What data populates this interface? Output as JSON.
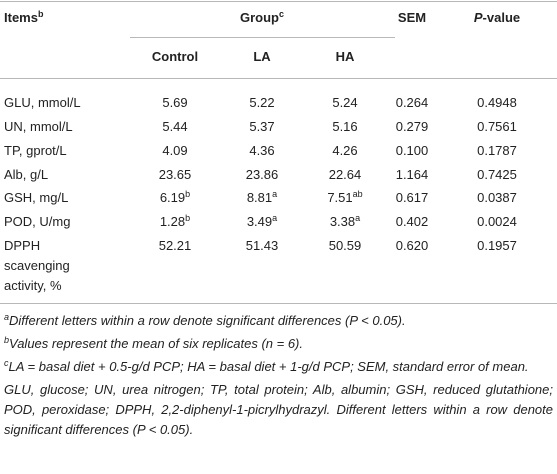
{
  "table": {
    "header": {
      "items": {
        "text": "Items",
        "sup": "b"
      },
      "group": {
        "text": "Group",
        "sup": "c"
      },
      "sem": "SEM",
      "pvalue": {
        "italic": "P",
        "text": "-value"
      },
      "subgroups": [
        "Control",
        "LA",
        "HA"
      ]
    },
    "rows": [
      {
        "item": "GLU, mmol/L",
        "cells": [
          {
            "value": "5.69"
          },
          {
            "value": "5.22"
          },
          {
            "value": "5.24"
          }
        ],
        "sem": "0.264",
        "p": "0.4948"
      },
      {
        "item": "UN, mmol/L",
        "cells": [
          {
            "value": "5.44"
          },
          {
            "value": "5.37"
          },
          {
            "value": "5.16"
          }
        ],
        "sem": "0.279",
        "p": "0.7561"
      },
      {
        "item": "TP, gprot/L",
        "cells": [
          {
            "value": "4.09"
          },
          {
            "value": "4.36"
          },
          {
            "value": "4.26"
          }
        ],
        "sem": "0.100",
        "p": "0.1787"
      },
      {
        "item": "Alb, g/L",
        "cells": [
          {
            "value": "23.65"
          },
          {
            "value": "23.86"
          },
          {
            "value": "22.64"
          }
        ],
        "sem": "1.164",
        "p": "0.7425"
      },
      {
        "item": "GSH, mg/L",
        "cells": [
          {
            "value": "6.19",
            "sup": "b"
          },
          {
            "value": "8.81",
            "sup": "a"
          },
          {
            "value": "7.51",
            "sup": "ab"
          }
        ],
        "sem": "0.617",
        "p": "0.0387"
      },
      {
        "item": "POD, U/mg",
        "cells": [
          {
            "value": "1.28",
            "sup": "b"
          },
          {
            "value": "3.49",
            "sup": "a"
          },
          {
            "value": "3.38",
            "sup": "a"
          }
        ],
        "sem": "0.402",
        "p": "0.0024"
      },
      {
        "item": "DPPH scavenging activity, %",
        "cells": [
          {
            "value": "52.21"
          },
          {
            "value": "51.43"
          },
          {
            "value": "50.59"
          }
        ],
        "sem": "0.620",
        "p": "0.1957"
      }
    ]
  },
  "footnotes": [
    {
      "mark": "a",
      "text": "Different letters within a row denote significant differences (P < 0.05)."
    },
    {
      "mark": "b",
      "text": "Values represent the mean of six replicates (n = 6)."
    },
    {
      "mark": "c",
      "text": "LA = basal diet + 0.5-g/d PCP; HA = basal diet + 1-g/d PCP; SEM, standard error of mean."
    }
  ],
  "abbreviations": "GLU, glucose; UN, urea nitrogen; TP, total protein; Alb, albumin; GSH, reduced glutathione; POD, peroxidase; DPPH, 2,2-diphenyl-1-picrylhydrazyl. Different letters within a row denote significant differences (P < 0.05)."
}
